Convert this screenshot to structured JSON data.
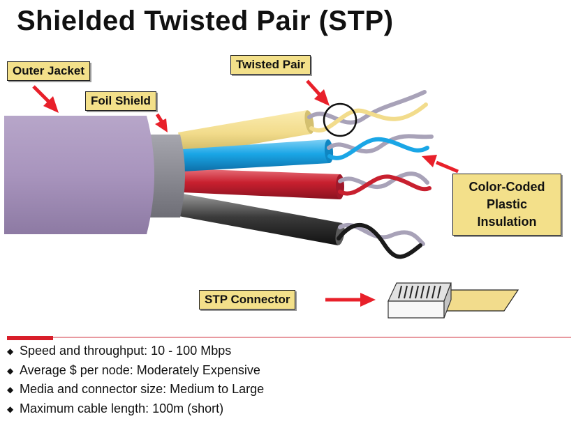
{
  "title": "Shielded Twisted Pair (STP)",
  "labels": {
    "outer_jacket": "Outer Jacket",
    "foil_shield": "Foil Shield",
    "twisted_pair": "Twisted Pair",
    "color_coded": [
      "Color-Coded",
      "Plastic",
      "Insulation"
    ],
    "stp_connector": "STP Connector"
  },
  "bullets": [
    "Speed and throughput:  10 - 100 Mbps",
    "Average $ per node:  Moderately Expensive",
    "Media and connector size:  Medium to Large",
    "Maximum cable length:  100m (short)"
  ],
  "colors": {
    "jacket": "#a894bd",
    "foil": "#8e8e96",
    "wire_yellow": "#f2dc8c",
    "wire_blue": "#1aa6e6",
    "wire_red": "#c8202f",
    "wire_black": "#2b2b2b",
    "wire_grey": "#a8a2b8",
    "arrow": "#e8202a",
    "label_bg": "#f3e08a"
  }
}
